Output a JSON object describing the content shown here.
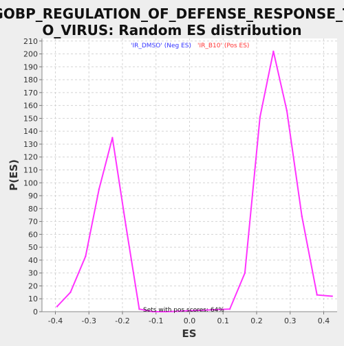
{
  "chart_data": {
    "type": "line",
    "title_lines": [
      "GOBP_REGULATION_OF_DEFENSE_RESPONSE_T",
      "O_VIRUS: Random ES distribution"
    ],
    "xlabel": "ES",
    "ylabel": "P(ES)",
    "xlim": [
      -0.44,
      0.44
    ],
    "ylim": [
      0,
      212
    ],
    "x_ticks": [
      -0.4,
      -0.3,
      -0.2,
      -0.1,
      0.0,
      0.1,
      0.2,
      0.3,
      0.4
    ],
    "x_tick_labels": [
      "-0.4",
      "-0.3",
      "-0.2",
      "-0.1",
      "0.0",
      "0.1",
      "0.2",
      "0.3",
      "0.4"
    ],
    "y_ticks": [
      0,
      10,
      20,
      30,
      40,
      50,
      60,
      70,
      80,
      90,
      100,
      110,
      120,
      130,
      140,
      150,
      160,
      170,
      180,
      190,
      200,
      210
    ],
    "legend": [
      {
        "label": "'IR_DMSO' (Neg ES)",
        "color": "#3333ff"
      },
      {
        "label": "'IR_B10' (Pos ES)",
        "color": "#ff3333"
      }
    ],
    "annotation": "Sets with pos scores: 64%",
    "grid": true,
    "series": [
      {
        "name": "Random ES",
        "color": "#ff33ff",
        "x": [
          -0.395,
          -0.355,
          -0.31,
          -0.27,
          -0.23,
          -0.19,
          -0.15,
          -0.11,
          -0.07,
          0.12,
          0.165,
          0.21,
          0.25,
          0.29,
          0.335,
          0.38,
          0.425
        ],
        "y": [
          4,
          15,
          43,
          95,
          135,
          67,
          2,
          0,
          0,
          2,
          30,
          151,
          202,
          156,
          74,
          13,
          12
        ]
      }
    ]
  }
}
